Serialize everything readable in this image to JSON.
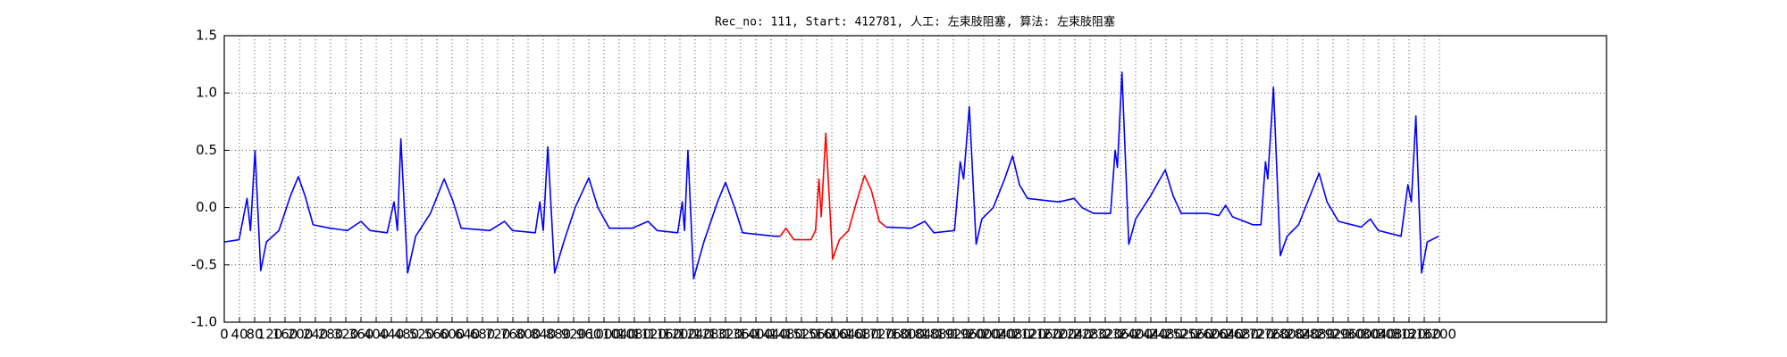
{
  "chart_data": {
    "type": "line",
    "title": "Rec_no: 111, Start: 412781, 人工: 左束肢阻塞, 算法: 左束肢阻塞",
    "xlim": [
      0,
      3640
    ],
    "ylim": [
      -1.0,
      1.5
    ],
    "xticks": [
      0,
      40,
      80,
      120,
      160,
      200,
      240,
      280,
      320,
      360,
      400,
      440,
      480,
      520,
      560,
      600,
      640,
      680,
      720,
      760,
      800,
      840,
      880,
      920,
      960,
      1000,
      1040,
      1080,
      1120,
      1160,
      1200,
      1240,
      1280,
      1320,
      1360,
      1400,
      1440,
      1480,
      1520,
      1560,
      1600,
      1640,
      1680,
      1720,
      1760,
      1800,
      1840,
      1880,
      1920,
      1960,
      2000,
      2040,
      2080,
      2120,
      2160,
      2200,
      2240,
      2280,
      2320,
      2360,
      2400,
      2440,
      2480,
      2520,
      2560,
      2600,
      2640,
      2680,
      2720,
      2760,
      2800,
      2840,
      2880,
      2920,
      2960,
      3000,
      3040,
      3080,
      3120,
      3160,
      3200
    ],
    "yticks": [
      {
        "value": -1.0,
        "label": "-1.0"
      },
      {
        "value": -0.5,
        "label": "-0.5"
      },
      {
        "value": 0,
        "label": "0.0"
      },
      {
        "value": 0.5,
        "label": "0.5"
      },
      {
        "value": 1.0,
        "label": "1.0"
      },
      {
        "value": 1.5,
        "label": "1.5"
      }
    ],
    "grid": true,
    "series": [
      {
        "color": "#0000ff",
        "x": [
          0,
          39,
          60,
          69,
          81,
          96,
          111,
          144,
          174,
          195,
          213,
          234,
          279,
          324,
          360,
          384,
          429,
          447,
          456,
          465,
          483,
          504,
          543,
          579,
          603,
          624,
          699,
          738,
          759,
          819,
          831,
          840,
          852,
          870,
          894,
          924,
          960,
          984,
          1014,
          1074,
          1116,
          1140,
          1194,
          1206,
          1212,
          1221,
          1236,
          1263,
          1299,
          1320,
          1344,
          1365,
          1449,
          1464
        ],
        "values": [
          -0.3,
          -0.28,
          0.08,
          -0.2,
          0.5,
          -0.55,
          -0.3,
          -0.2,
          0.1,
          0.27,
          0.1,
          -0.15,
          -0.18,
          -0.2,
          -0.12,
          -0.2,
          -0.22,
          0.05,
          -0.2,
          0.6,
          -0.57,
          -0.25,
          -0.05,
          0.25,
          0.05,
          -0.18,
          -0.2,
          -0.12,
          -0.2,
          -0.22,
          0.05,
          -0.2,
          0.53,
          -0.57,
          -0.3,
          0,
          0.26,
          0,
          -0.18,
          -0.18,
          -0.12,
          -0.2,
          -0.22,
          0.05,
          -0.2,
          0.5,
          -0.62,
          -0.3,
          0.05,
          0.22,
          0,
          -0.22,
          -0.25,
          -0.25
        ]
      },
      {
        "color": "#ff0000",
        "x": [
          1464,
          1479,
          1500,
          1545,
          1557,
          1566,
          1572,
          1584,
          1602,
          1620,
          1644,
          1665,
          1686,
          1704,
          1725,
          1743
        ],
        "values": [
          -0.25,
          -0.18,
          -0.28,
          -0.28,
          -0.2,
          0.25,
          -0.08,
          0.65,
          -0.45,
          -0.28,
          -0.2,
          0.05,
          0.28,
          0.15,
          -0.12,
          -0.17
        ]
      },
      {
        "color": "#0000ff",
        "x": [
          1743,
          1809,
          1845,
          1869,
          1923,
          1938,
          1947,
          1962,
          1980,
          1995,
          2025,
          2055,
          2076,
          2094,
          2115,
          2169,
          2199,
          2238,
          2259,
          2289,
          2334,
          2346,
          2352,
          2364,
          2382,
          2400,
          2439,
          2478,
          2499,
          2520,
          2589,
          2619,
          2637,
          2655,
          2709,
          2730,
          2742,
          2748,
          2763,
          2781,
          2799,
          2829,
          2859,
          2883,
          2904,
          2934,
          2994,
          3018,
          3039,
          3099,
          3117,
          3126,
          3138,
          3153,
          3168,
          3198
        ],
        "values": [
          -0.17,
          -0.18,
          -0.12,
          -0.22,
          -0.2,
          0.4,
          0.25,
          0.88,
          -0.32,
          -0.1,
          0,
          0.25,
          0.45,
          0.2,
          0.08,
          0.06,
          0.05,
          0.08,
          0,
          -0.05,
          -0.05,
          0.5,
          0.35,
          1.18,
          -0.32,
          -0.1,
          0.1,
          0.33,
          0.1,
          -0.05,
          -0.05,
          -0.07,
          0.02,
          -0.08,
          -0.15,
          -0.15,
          0.4,
          0.25,
          1.05,
          -0.42,
          -0.25,
          -0.15,
          0.1,
          0.3,
          0.05,
          -0.12,
          -0.17,
          -0.1,
          -0.2,
          -0.25,
          0.2,
          0.05,
          0.8,
          -0.57,
          -0.3,
          -0.25
        ]
      }
    ]
  }
}
